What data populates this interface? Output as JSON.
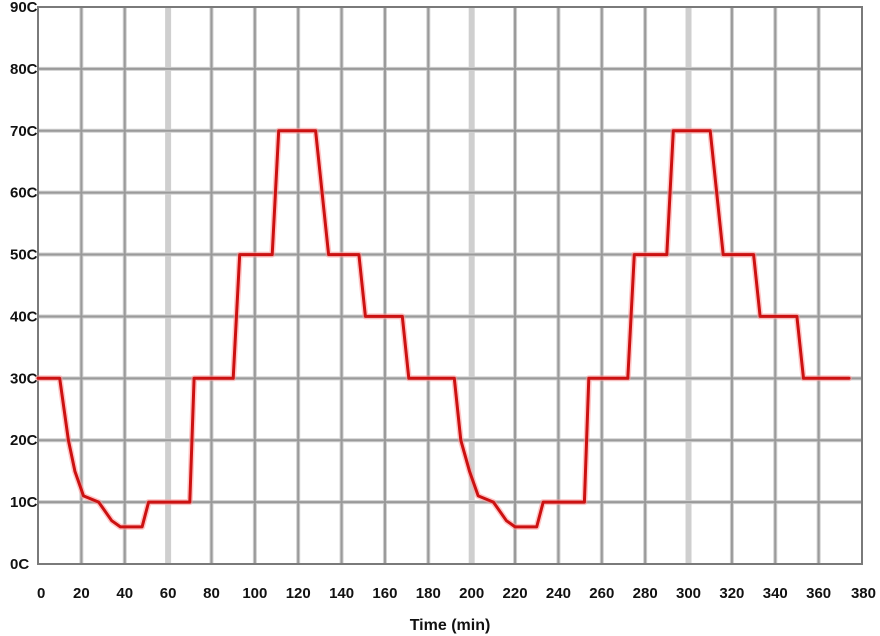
{
  "chart_data": {
    "type": "line",
    "title": "",
    "xlabel": "Time (min)",
    "ylabel": "",
    "xlim": [
      0,
      380
    ],
    "ylim": [
      0,
      90
    ],
    "grid": true,
    "x_ticks": [
      "0",
      "20",
      "40",
      "60",
      "80",
      "100",
      "120",
      "140",
      "160",
      "180",
      "200",
      "220",
      "240",
      "260",
      "280",
      "300",
      "320",
      "340",
      "360",
      "380"
    ],
    "y_ticks": [
      "0C",
      "10C",
      "20C",
      "30C",
      "40C",
      "50C",
      "60C",
      "70C",
      "80C",
      "90C"
    ],
    "colors": {
      "line": "#cc1111",
      "grid": "#9a9a9a",
      "grid_light": "#cfcfcf",
      "frame": "#7a7a7a"
    },
    "series": [
      {
        "points": [
          [
            0,
            30
          ],
          [
            10,
            30
          ],
          [
            14,
            20
          ],
          [
            17,
            15
          ],
          [
            21,
            11
          ],
          [
            28,
            10
          ],
          [
            34,
            7
          ],
          [
            38,
            6
          ],
          [
            48,
            6
          ],
          [
            51,
            10
          ],
          [
            70,
            10
          ],
          [
            72,
            30
          ],
          [
            90,
            30
          ],
          [
            93,
            50
          ],
          [
            108,
            50
          ],
          [
            111,
            70
          ],
          [
            128,
            70
          ],
          [
            134,
            50
          ],
          [
            148,
            50
          ],
          [
            151,
            40
          ],
          [
            168,
            40
          ],
          [
            171,
            30
          ],
          [
            192,
            30
          ],
          [
            195,
            20
          ],
          [
            199,
            15
          ],
          [
            203,
            11
          ],
          [
            210,
            10
          ],
          [
            216,
            7
          ],
          [
            220,
            6
          ],
          [
            230,
            6
          ],
          [
            233,
            10
          ],
          [
            252,
            10
          ],
          [
            254,
            30
          ],
          [
            272,
            30
          ],
          [
            275,
            50
          ],
          [
            290,
            50
          ],
          [
            293,
            70
          ],
          [
            310,
            70
          ],
          [
            316,
            50
          ],
          [
            330,
            50
          ],
          [
            333,
            40
          ],
          [
            350,
            40
          ],
          [
            353,
            30
          ],
          [
            374,
            30
          ]
        ]
      }
    ]
  }
}
